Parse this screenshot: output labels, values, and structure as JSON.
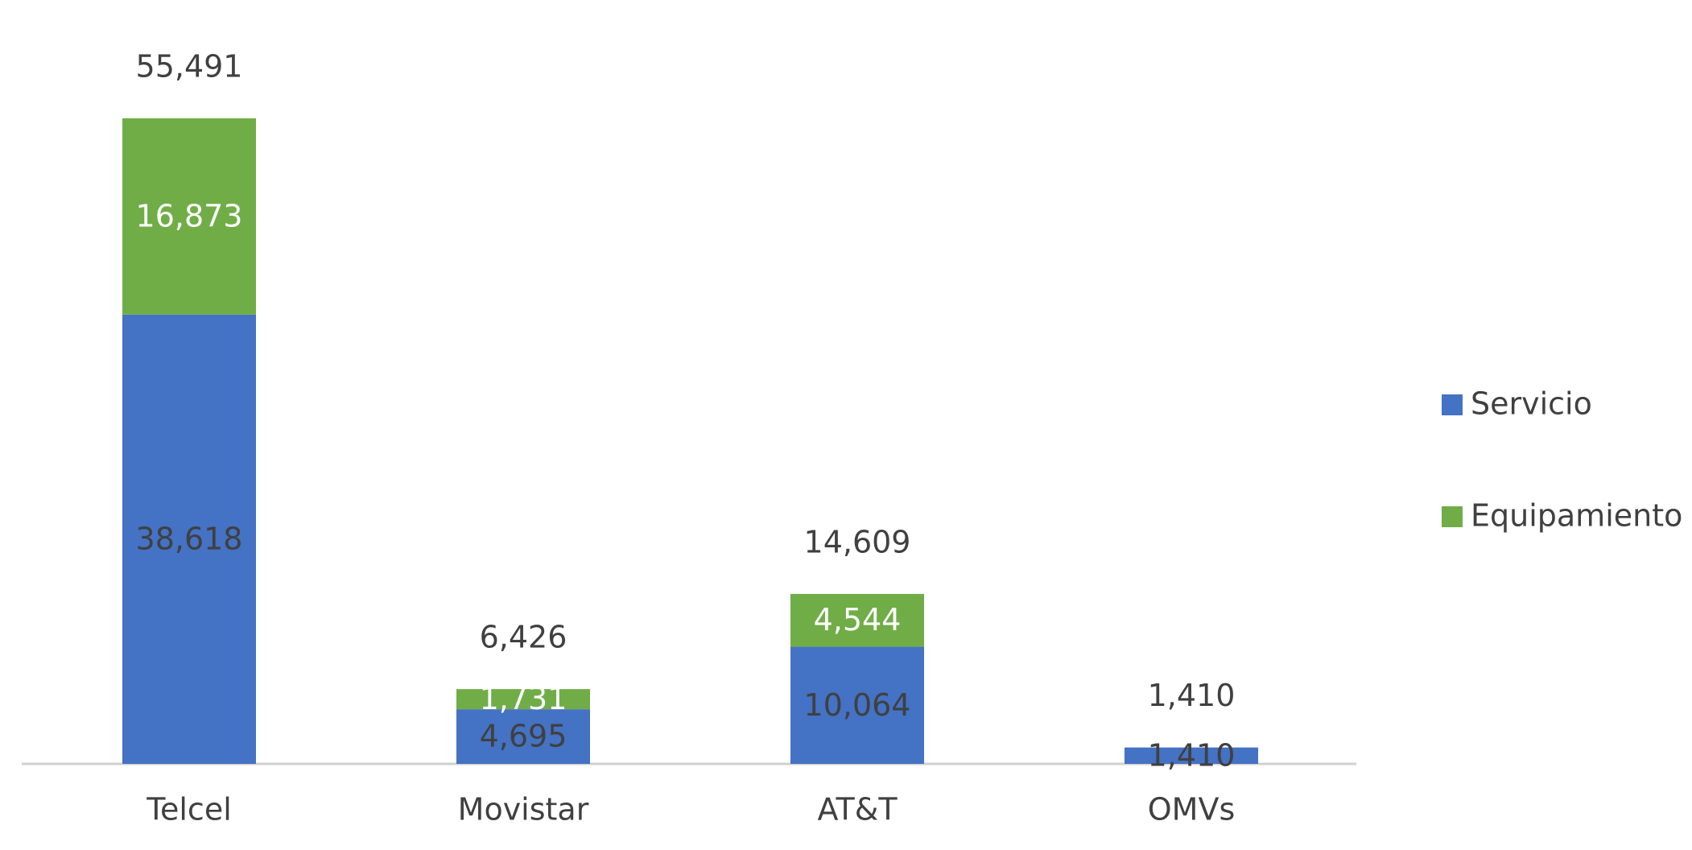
{
  "chart_data": {
    "type": "stacked_bar",
    "categories": [
      "Telcel",
      "Movistar",
      "AT&T",
      "OMVs"
    ],
    "series": [
      {
        "name": "Servicio",
        "color": "#4472c4",
        "values": [
          38618,
          4695,
          10064,
          1410
        ],
        "value_labels": [
          "38,618",
          "4,695",
          "10,064",
          "1,410"
        ],
        "label_color": "#404040"
      },
      {
        "name": "Equipamiento",
        "color": "#70ad47",
        "values": [
          16873,
          1731,
          4544,
          null
        ],
        "value_labels": [
          "16,873",
          "1,731",
          "4,544",
          null
        ],
        "label_color": "#ffffff"
      }
    ],
    "totals": {
      "values": [
        55491,
        6426,
        14609,
        1410
      ],
      "value_labels": [
        "55,491",
        "6,426",
        "14,609",
        "1,410"
      ]
    },
    "legend": "right"
  }
}
